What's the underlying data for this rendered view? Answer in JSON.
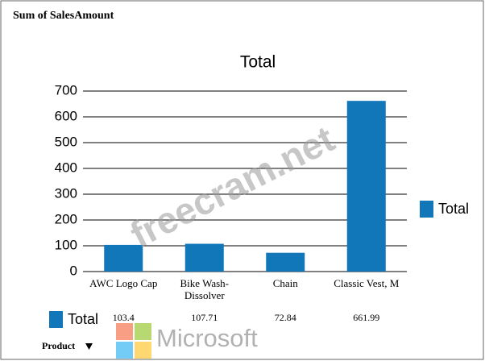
{
  "pivot": {
    "data_field": "Sum of SalesAmount",
    "row_field": "Product"
  },
  "chart_data": {
    "type": "bar",
    "title": "Total",
    "categories": [
      "AWC Logo Cap",
      "Bike Wash-Dissolver",
      "Chain",
      "Classic Vest, M"
    ],
    "series": [
      {
        "name": "Total",
        "color": "#1177b8",
        "values": [
          103.4,
          107.71,
          72.84,
          661.99
        ]
      }
    ],
    "ylim": [
      0,
      700
    ],
    "yticks": [
      0,
      100,
      200,
      300,
      400,
      500,
      600,
      700
    ],
    "grid": true,
    "legend": "right",
    "data_table": true
  },
  "watermarks": [
    "freecram.net",
    "Microsoft"
  ]
}
